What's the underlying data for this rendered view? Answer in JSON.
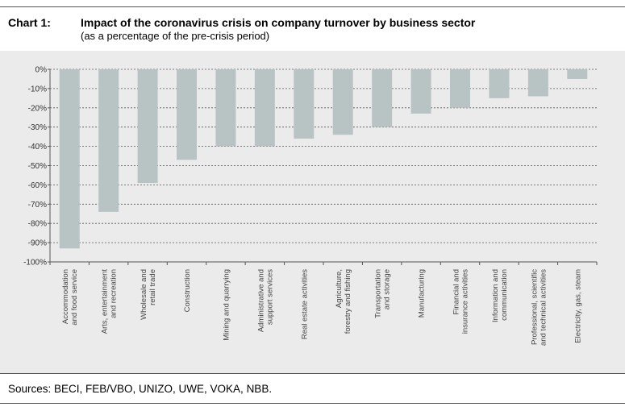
{
  "header": {
    "chart_number": "Chart 1:",
    "title": "Impact of the coronavirus crisis on company turnover by business sector",
    "subtitle": "(as a percentage of the pre-crisis period)"
  },
  "footer": {
    "sources": "Sources: BECI, FEB/VBO, UNIZO, UWE, VOKA, NBB."
  },
  "colors": {
    "bar": "#b8c4c3",
    "plot_background": "#ebebeb",
    "grid": "#555555",
    "axis": "#555555"
  },
  "chart_data": {
    "type": "bar",
    "title": "Impact of the coronavirus crisis on company turnover by business sector",
    "subtitle": "(as a percentage of the pre-crisis period)",
    "xlabel": "",
    "ylabel": "",
    "ylim": [
      -100,
      0
    ],
    "yticks": [
      0,
      -10,
      -20,
      -30,
      -40,
      -50,
      -60,
      -70,
      -80,
      -90,
      -100
    ],
    "ytick_labels": [
      "0%",
      "-10%",
      "-20%",
      "-30%",
      "-40%",
      "-50%",
      "-60%",
      "-70%",
      "-80%",
      "-90%",
      "-100%"
    ],
    "grid": "horizontal dashed",
    "legend": "none",
    "categories": [
      [
        "Accommodation",
        "and food service"
      ],
      [
        "Arts, entertainment",
        "and recreation"
      ],
      [
        "Wholesale and",
        "retail trade"
      ],
      [
        "Construction"
      ],
      [
        "Mining and quarrying"
      ],
      [
        "Administrative and",
        "support services"
      ],
      [
        "Real estate activities"
      ],
      [
        "Agriculture,",
        "forestry and fishing"
      ],
      [
        "Transportation",
        "and storage"
      ],
      [
        "Manufacturing"
      ],
      [
        "Financial and",
        "insurance activities"
      ],
      [
        "Information and",
        "communication"
      ],
      [
        "Professional, scientific",
        "and technical activities"
      ],
      [
        "Electricity, gas, steam"
      ]
    ],
    "values": [
      -93,
      -74,
      -59,
      -47,
      -40,
      -40,
      -36,
      -34,
      -30,
      -23,
      -20,
      -15,
      -14,
      -5
    ]
  }
}
